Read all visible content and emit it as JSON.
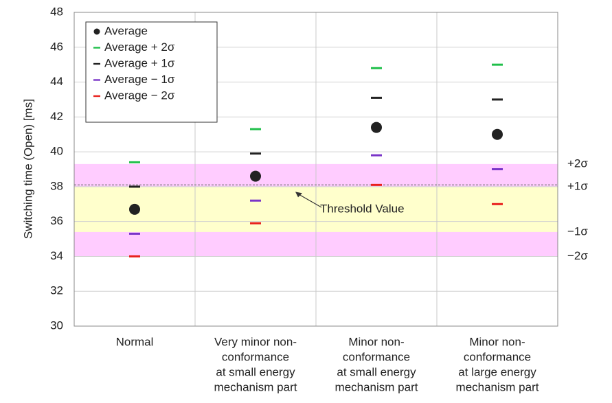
{
  "chart_data": {
    "type": "dot-dash",
    "ylabel": "Switching time  (Open) [ms]",
    "categories": [
      [
        "Normal"
      ],
      [
        "Very minor non-",
        "conformance",
        "at small energy",
        "mechanism part"
      ],
      [
        "Minor non-",
        "conformance",
        "at small energy",
        "mechanism part"
      ],
      [
        "Minor non-",
        "conformance",
        "at large energy",
        "mechanism part"
      ]
    ],
    "series": [
      {
        "name": "Average",
        "color": "#222222",
        "marker": "circle",
        "values": [
          36.7,
          38.6,
          41.4,
          41.0
        ]
      },
      {
        "name": "Average + 2σ",
        "color": "#1fbf4a",
        "marker": "dash",
        "values": [
          39.4,
          41.3,
          44.8,
          45.0
        ]
      },
      {
        "name": "Average + 1σ",
        "color": "#222222",
        "marker": "dash",
        "values": [
          38.0,
          39.9,
          43.1,
          43.0
        ]
      },
      {
        "name": "Average − 1σ",
        "color": "#7a35c8",
        "marker": "dash",
        "values": [
          35.3,
          37.2,
          39.8,
          39.0
        ]
      },
      {
        "name": "Average − 2σ",
        "color": "#e8201c",
        "marker": "dash",
        "values": [
          34.0,
          35.9,
          38.1,
          37.0
        ]
      }
    ],
    "bands": [
      {
        "from": 34.0,
        "to": 39.3,
        "color": "#ffccff"
      },
      {
        "from": 35.4,
        "to": 38.0,
        "color": "#ffffcc"
      }
    ],
    "band_labels": [
      {
        "value": 39.3,
        "label": "+2σ"
      },
      {
        "value": 38.0,
        "label": "+1σ"
      },
      {
        "value": 35.4,
        "label": "−1σ"
      },
      {
        "value": 34.0,
        "label": "−2σ"
      }
    ],
    "threshold": {
      "value": 38.1,
      "label": "Threshold Value"
    },
    "ylim": [
      30,
      48
    ],
    "yticks": [
      30,
      32,
      34,
      36,
      38,
      40,
      42,
      44,
      46,
      48
    ],
    "grid": true,
    "legend": "upper left"
  }
}
